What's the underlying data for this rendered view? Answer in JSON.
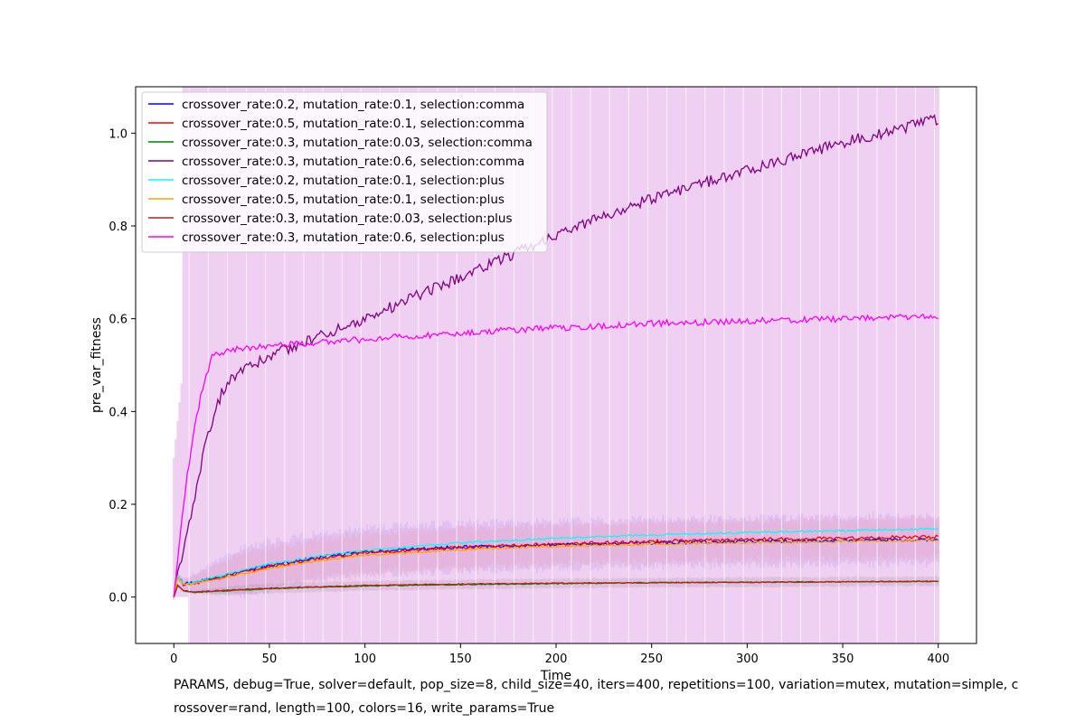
{
  "chart_data": {
    "type": "line",
    "xlabel": "Time",
    "ylabel": "pre_var_fitness",
    "xlim": [
      -20,
      420
    ],
    "ylim": [
      -0.1,
      1.1
    ],
    "xticks": [
      0,
      50,
      100,
      150,
      200,
      250,
      300,
      350,
      400
    ],
    "yticks": [
      0.0,
      0.2,
      0.4,
      0.6,
      0.8,
      1.0
    ],
    "xtick_labels": [
      "0",
      "50",
      "100",
      "150",
      "200",
      "250",
      "300",
      "350",
      "400"
    ],
    "ytick_labels": [
      "0.0",
      "0.2",
      "0.4",
      "0.6",
      "0.8",
      "1.0"
    ],
    "grid": false,
    "legend_position": "top-left",
    "error_bands": true,
    "series": [
      {
        "name": "crossover_rate:0.2, mutation_rate:0.1, selection:comma",
        "color": "#0000ff",
        "x": [
          0,
          2,
          5,
          10,
          20,
          30,
          50,
          75,
          100,
          150,
          200,
          250,
          300,
          350,
          400
        ],
        "y": [
          0.0,
          0.045,
          0.028,
          0.03,
          0.04,
          0.05,
          0.068,
          0.085,
          0.098,
          0.108,
          0.113,
          0.117,
          0.12,
          0.122,
          0.124
        ]
      },
      {
        "name": "crossover_rate:0.5, mutation_rate:0.1, selection:comma",
        "color": "#ff0000",
        "x": [
          0,
          2,
          5,
          10,
          20,
          30,
          50,
          75,
          100,
          150,
          200,
          250,
          300,
          350,
          400
        ],
        "y": [
          0.0,
          0.043,
          0.027,
          0.029,
          0.038,
          0.048,
          0.066,
          0.083,
          0.096,
          0.107,
          0.114,
          0.12,
          0.124,
          0.127,
          0.13
        ]
      },
      {
        "name": "crossover_rate:0.3, mutation_rate:0.03, selection:comma",
        "color": "#008000",
        "x": [
          0,
          2,
          5,
          10,
          20,
          50,
          100,
          150,
          200,
          250,
          300,
          350,
          400
        ],
        "y": [
          0.0,
          0.025,
          0.013,
          0.01,
          0.012,
          0.018,
          0.024,
          0.027,
          0.029,
          0.031,
          0.032,
          0.033,
          0.034
        ]
      },
      {
        "name": "crossover_rate:0.3, mutation_rate:0.6, selection:comma",
        "color": "#800080",
        "x": [
          0,
          2,
          5,
          10,
          15,
          20,
          25,
          30,
          40,
          50,
          75,
          100,
          150,
          200,
          250,
          300,
          350,
          400
        ],
        "y": [
          0.0,
          0.055,
          0.1,
          0.2,
          0.3,
          0.38,
          0.44,
          0.47,
          0.5,
          0.52,
          0.56,
          0.6,
          0.69,
          0.78,
          0.86,
          0.92,
          0.98,
          1.03
        ]
      },
      {
        "name": "crossover_rate:0.2, mutation_rate:0.1, selection:plus",
        "color": "#00ffff",
        "x": [
          0,
          2,
          5,
          10,
          20,
          30,
          50,
          75,
          100,
          150,
          200,
          250,
          300,
          350,
          400
        ],
        "y": [
          0.0,
          0.045,
          0.028,
          0.031,
          0.042,
          0.052,
          0.071,
          0.088,
          0.1,
          0.117,
          0.127,
          0.134,
          0.139,
          0.143,
          0.147
        ]
      },
      {
        "name": "crossover_rate:0.5, mutation_rate:0.1, selection:plus",
        "color": "#ffa500",
        "x": [
          0,
          2,
          5,
          10,
          20,
          30,
          50,
          75,
          100,
          150,
          200,
          250,
          300,
          350,
          400
        ],
        "y": [
          0.0,
          0.042,
          0.026,
          0.028,
          0.036,
          0.045,
          0.062,
          0.078,
          0.09,
          0.102,
          0.109,
          0.114,
          0.117,
          0.12,
          0.122
        ]
      },
      {
        "name": "crossover_rate:0.3, mutation_rate:0.03, selection:plus",
        "color": "#b22222",
        "x": [
          0,
          2,
          5,
          10,
          20,
          50,
          100,
          150,
          200,
          250,
          300,
          350,
          400
        ],
        "y": [
          0.0,
          0.026,
          0.014,
          0.011,
          0.013,
          0.019,
          0.025,
          0.028,
          0.03,
          0.031,
          0.032,
          0.033,
          0.034
        ]
      },
      {
        "name": "crossover_rate:0.3, mutation_rate:0.6, selection:plus",
        "color": "#ff00ff",
        "x": [
          0,
          2,
          5,
          10,
          15,
          20,
          30,
          50,
          75,
          100,
          150,
          200,
          250,
          300,
          350,
          400
        ],
        "y": [
          0.0,
          0.08,
          0.2,
          0.35,
          0.45,
          0.52,
          0.535,
          0.54,
          0.55,
          0.555,
          0.57,
          0.58,
          0.59,
          0.595,
          0.6,
          0.605
        ]
      }
    ]
  },
  "footer": {
    "params_line1": "PARAMS, debug=True, solver=default, pop_size=8, child_size=40, iters=400, repetitions=100, variation=mutex, mutation=simple, c",
    "params_line2": "rossover=rand, length=100, colors=16, write_params=True"
  }
}
